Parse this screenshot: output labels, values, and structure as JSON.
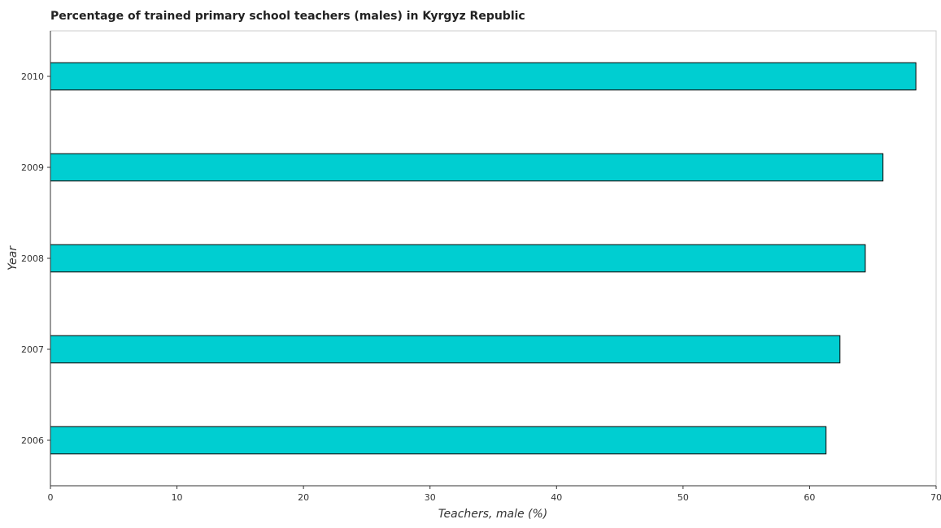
{
  "chart_data": {
    "type": "bar",
    "orientation": "horizontal",
    "title": "Percentage of trained primary school teachers (males) in Kyrgyz Republic",
    "xlabel": "Teachers, male (%)",
    "ylabel": "Year",
    "categories": [
      "2006",
      "2007",
      "2008",
      "2009",
      "2010"
    ],
    "values": [
      61.3,
      62.4,
      64.4,
      65.8,
      68.4
    ],
    "xlim": [
      0,
      70
    ],
    "xticks": [
      0,
      10,
      20,
      30,
      40,
      50,
      60,
      70
    ],
    "grid": false,
    "legend": "none",
    "bar_color": "#00CED1",
    "bar_edge_color": "#000000"
  }
}
